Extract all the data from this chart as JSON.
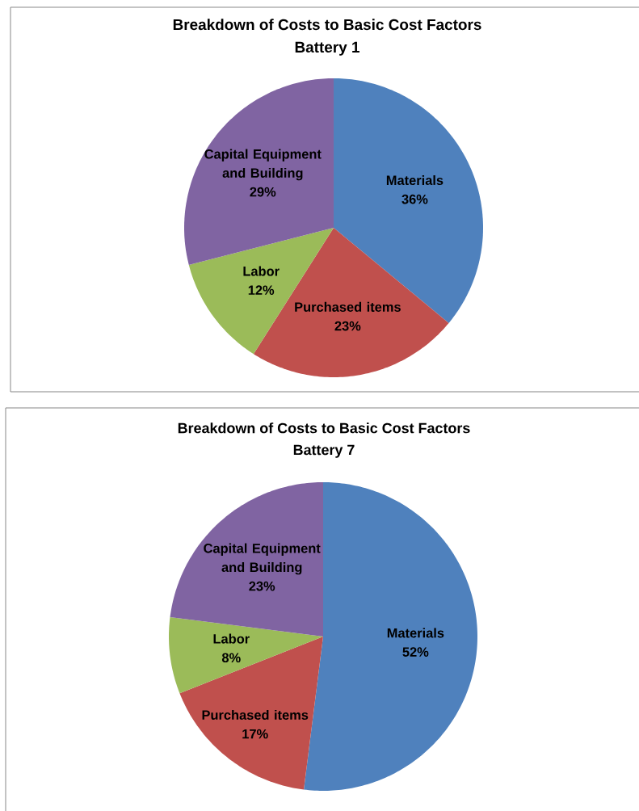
{
  "chart_data": [
    {
      "type": "pie",
      "title": "Breakdown of Costs to Basic Cost Factors",
      "subtitle": "Battery 1",
      "categories": [
        "Materials",
        "Purchased items",
        "Labor",
        "Capital Equipment and Building"
      ],
      "values": [
        36,
        23,
        12,
        29
      ],
      "colors": [
        "#4f81bd",
        "#c0504d",
        "#9bbb59",
        "#8064a2"
      ],
      "value_labels": [
        "36%",
        "23%",
        "12%",
        "29%"
      ]
    },
    {
      "type": "pie",
      "title": "Breakdown of Costs to Basic Cost Factors",
      "subtitle": "Battery 7",
      "categories": [
        "Materials",
        "Purchased items",
        "Labor",
        "Capital Equipment and Building"
      ],
      "values": [
        52,
        17,
        8,
        23
      ],
      "colors": [
        "#4f81bd",
        "#c0504d",
        "#9bbb59",
        "#8064a2"
      ],
      "value_labels": [
        "52%",
        "17%",
        "8%",
        "23%"
      ]
    }
  ]
}
